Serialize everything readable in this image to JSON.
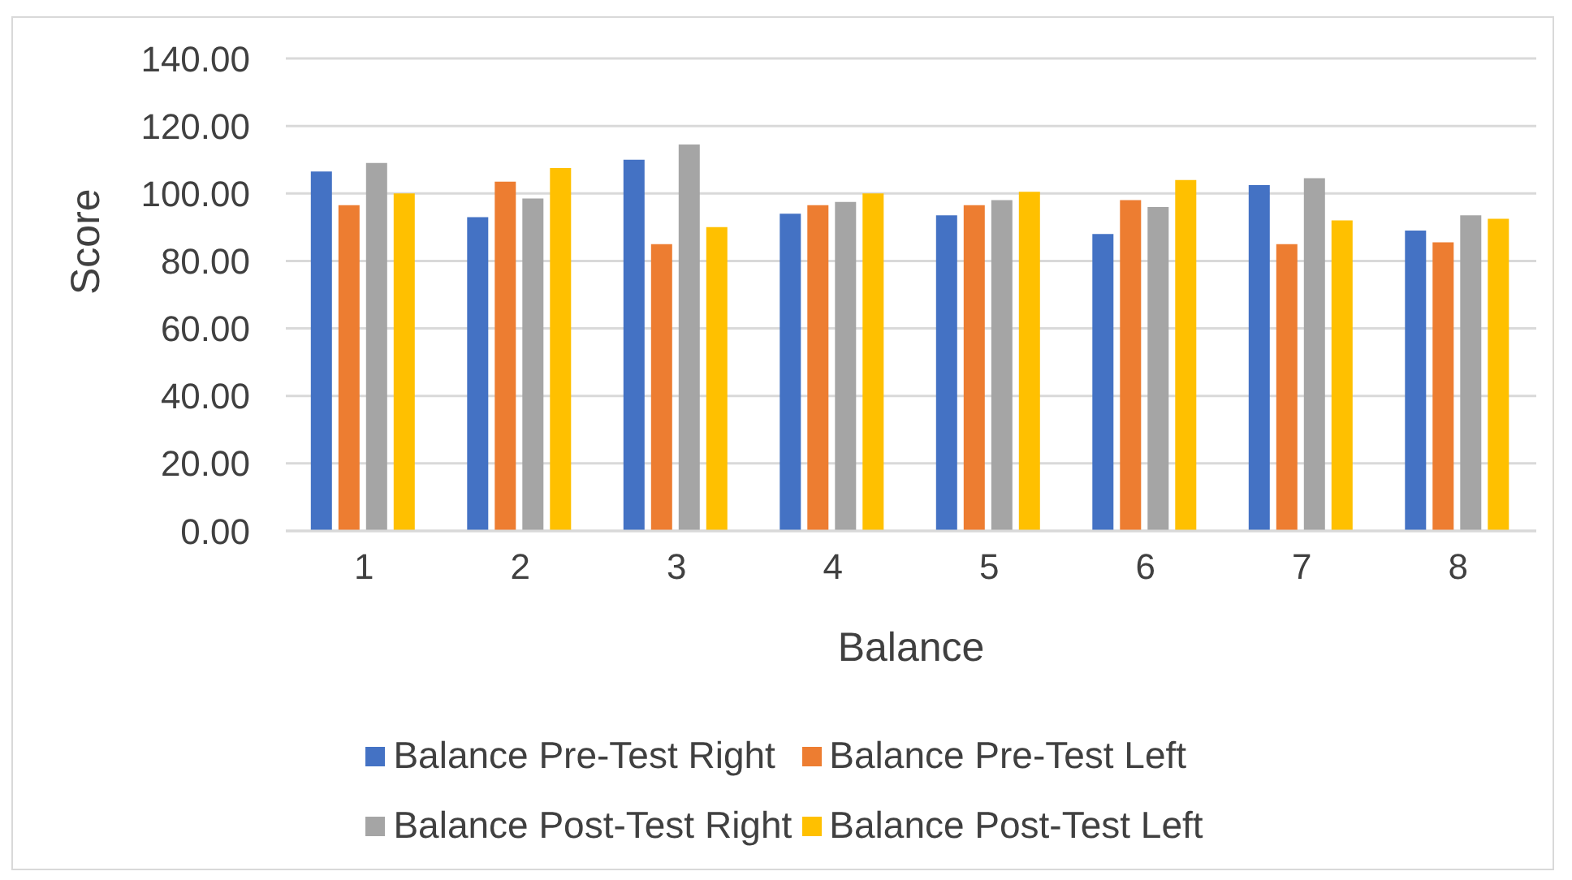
{
  "chart_data": {
    "type": "bar",
    "xlabel": "Balance",
    "ylabel": "Score",
    "categories": [
      "1",
      "2",
      "3",
      "4",
      "5",
      "6",
      "7",
      "8"
    ],
    "series": [
      {
        "name": "Balance Pre-Test Right",
        "color": "#4472c4",
        "values": [
          106.5,
          93,
          110,
          94,
          93.5,
          88,
          102.5,
          89
        ]
      },
      {
        "name": "Balance Pre-Test Left",
        "color": "#ed7d31",
        "values": [
          96.5,
          103.5,
          85,
          96.5,
          96.5,
          98,
          85,
          85.5
        ]
      },
      {
        "name": "Balance Post-Test Right",
        "color": "#a5a5a5",
        "values": [
          109,
          98.5,
          114.5,
          97.5,
          98,
          96,
          104.5,
          93.5
        ]
      },
      {
        "name": "Balance Post-Test Left",
        "color": "#ffc000",
        "values": [
          100,
          107.5,
          90,
          100,
          100.5,
          104,
          92,
          92.5
        ]
      }
    ],
    "ylim": [
      0,
      140
    ],
    "yticks": [
      {
        "value": 0,
        "label": "0.00"
      },
      {
        "value": 20,
        "label": "20.00"
      },
      {
        "value": 40,
        "label": "40.00"
      },
      {
        "value": 60,
        "label": "60.00"
      },
      {
        "value": 80,
        "label": "80.00"
      },
      {
        "value": 100,
        "label": "100.00"
      },
      {
        "value": 120,
        "label": "120.00"
      },
      {
        "value": 140,
        "label": "140.00"
      }
    ],
    "grid": "y",
    "legend": "bottom"
  }
}
